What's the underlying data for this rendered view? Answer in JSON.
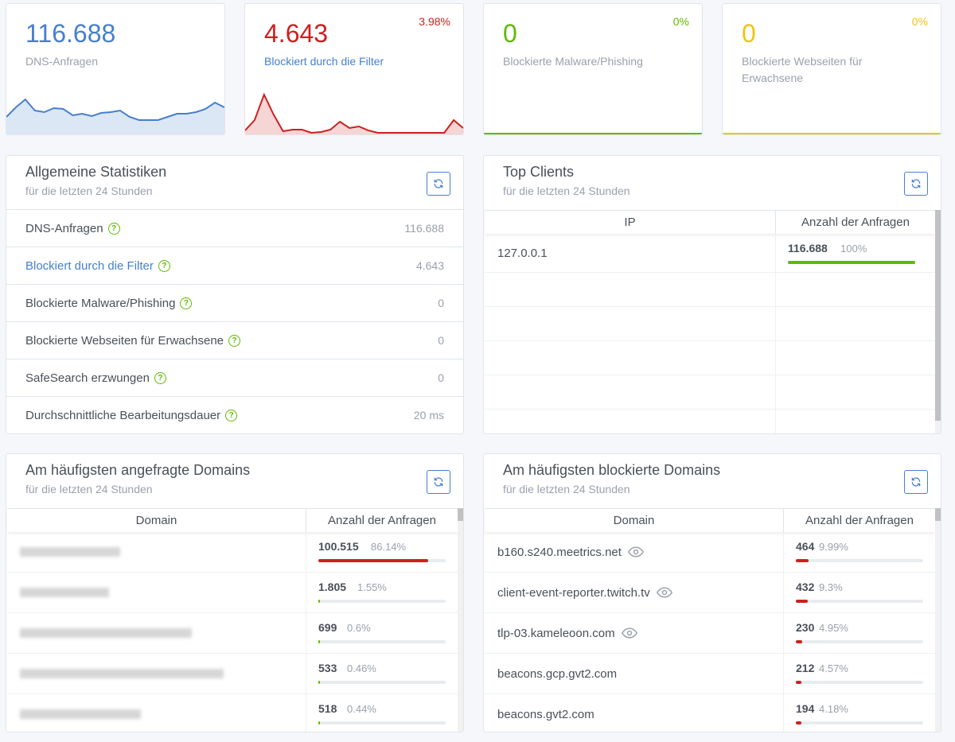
{
  "colors": {
    "blue": "#467fcf",
    "red": "#cd201f",
    "green": "#5eba00",
    "yellow": "#f1c40f"
  },
  "cards": [
    {
      "value": "116.688",
      "label": "DNS-Anfragen",
      "pct": ""
    },
    {
      "value": "4.643",
      "label": "Blockiert durch die Filter",
      "pct": "3.98%"
    },
    {
      "value": "0",
      "label": "Blockierte Malware/Phishing",
      "pct": "0%"
    },
    {
      "value": "0",
      "label": "Blockierte Webseiten für Erwachsene",
      "pct": "0%"
    }
  ],
  "general": {
    "title": "Allgemeine Statistiken",
    "subtitle": "für die letzten 24 Stunden",
    "rows": [
      {
        "label": "DNS-Anfragen",
        "value": "116.688"
      },
      {
        "label": "Blockiert durch die Filter",
        "value": "4.643"
      },
      {
        "label": "Blockierte Malware/Phishing",
        "value": "0"
      },
      {
        "label": "Blockierte Webseiten für Erwachsene",
        "value": "0"
      },
      {
        "label": "SafeSearch erzwungen",
        "value": "0"
      },
      {
        "label": "Durchschnittliche Bearbeitungsdauer",
        "value": "20 ms"
      }
    ]
  },
  "top_clients": {
    "title": "Top Clients",
    "subtitle": "für die letzten 24 Stunden",
    "col_ip": "IP",
    "col_count": "Anzahl der Anfragen",
    "rows": [
      {
        "ip": "127.0.0.1",
        "count": "116.688",
        "pct": "100%",
        "fraction": 1.0
      }
    ]
  },
  "queried": {
    "title": "Am häufigsten angefragte Domains",
    "subtitle": "für die letzten 24 Stunden",
    "col_domain": "Domain",
    "col_count": "Anzahl der Anfragen",
    "rows": [
      {
        "count": "100.515",
        "pct": "86.14%",
        "fraction": 0.8614
      },
      {
        "count": "1.805",
        "pct": "1.55%",
        "fraction": 0.0155
      },
      {
        "count": "699",
        "pct": "0.6%",
        "fraction": 0.006
      },
      {
        "count": "533",
        "pct": "0.46%",
        "fraction": 0.0046
      },
      {
        "count": "518",
        "pct": "0.44%",
        "fraction": 0.0044
      }
    ]
  },
  "blocked": {
    "title": "Am häufigsten blockierte Domains",
    "subtitle": "für die letzten 24 Stunden",
    "col_domain": "Domain",
    "col_count": "Anzahl der Anfragen",
    "rows": [
      {
        "domain": "b160.s240.meetrics.net",
        "count": "464",
        "pct": "9.99%",
        "fraction": 0.0999
      },
      {
        "domain": "client-event-reporter.twitch.tv",
        "count": "432",
        "pct": "9.3%",
        "fraction": 0.093
      },
      {
        "domain": "tlp-03.kameleoon.com",
        "count": "230",
        "pct": "4.95%",
        "fraction": 0.0495
      },
      {
        "domain": "beacons.gcp.gvt2.com",
        "count": "212",
        "pct": "4.57%",
        "fraction": 0.0457
      },
      {
        "domain": "beacons.gvt2.com",
        "count": "194",
        "pct": "4.18%",
        "fraction": 0.0418
      }
    ]
  }
}
